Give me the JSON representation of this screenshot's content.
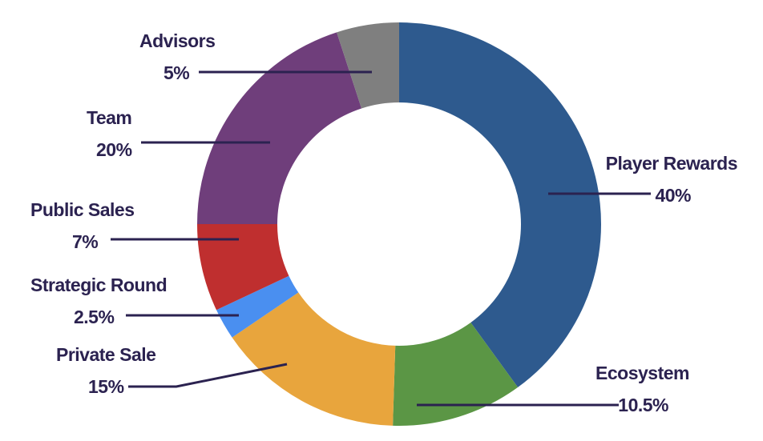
{
  "chart_data": {
    "type": "pie",
    "variant": "donut",
    "title": "",
    "legend": "none",
    "slices": [
      {
        "label": "Player Rewards",
        "value": 40,
        "display": "40%",
        "color": "#2e5a8e"
      },
      {
        "label": "Ecosystem",
        "value": 10.5,
        "display": "10.5%",
        "color": "#5b9645"
      },
      {
        "label": "Private Sale",
        "value": 15,
        "display": "15%",
        "color": "#e8a53d"
      },
      {
        "label": "Strategic Round",
        "value": 2.5,
        "display": "2.5%",
        "color": "#4a8ff0"
      },
      {
        "label": "Public Sales",
        "value": 7,
        "display": "7%",
        "color": "#bf2f2f"
      },
      {
        "label": "Team",
        "value": 20,
        "display": "20%",
        "color": "#6f3e7b"
      },
      {
        "label": "Advisors",
        "value": 5,
        "display": "5%",
        "color": "#7f7f7f"
      }
    ]
  }
}
